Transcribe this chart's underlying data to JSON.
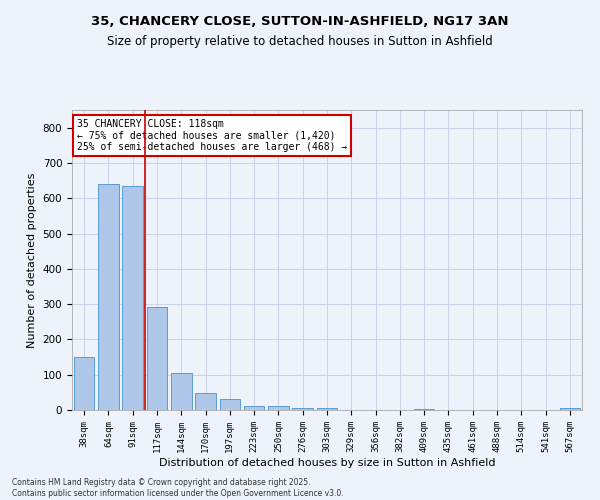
{
  "title1": "35, CHANCERY CLOSE, SUTTON-IN-ASHFIELD, NG17 3AN",
  "title2": "Size of property relative to detached houses in Sutton in Ashfield",
  "xlabel": "Distribution of detached houses by size in Sutton in Ashfield",
  "ylabel": "Number of detached properties",
  "categories": [
    "38sqm",
    "64sqm",
    "91sqm",
    "117sqm",
    "144sqm",
    "170sqm",
    "197sqm",
    "223sqm",
    "250sqm",
    "276sqm",
    "303sqm",
    "329sqm",
    "356sqm",
    "382sqm",
    "409sqm",
    "435sqm",
    "461sqm",
    "488sqm",
    "514sqm",
    "541sqm",
    "567sqm"
  ],
  "values": [
    150,
    640,
    635,
    293,
    105,
    48,
    30,
    12,
    10,
    7,
    7,
    0,
    0,
    0,
    4,
    0,
    0,
    0,
    0,
    0,
    5
  ],
  "bar_color": "#aec6e8",
  "bar_edge_color": "#5b9bd5",
  "vline_color": "#cc0000",
  "annotation_title": "35 CHANCERY CLOSE: 118sqm",
  "annotation_line1": "← 75% of detached houses are smaller (1,420)",
  "annotation_line2": "25% of semi-detached houses are larger (468) →",
  "annotation_box_color": "#cc0000",
  "ylim": [
    0,
    850
  ],
  "yticks": [
    0,
    100,
    200,
    300,
    400,
    500,
    600,
    700,
    800
  ],
  "footer": "Contains HM Land Registry data © Crown copyright and database right 2025.\nContains public sector information licensed under the Open Government Licence v3.0.",
  "bg_color": "#eef2fa",
  "grid_color": "#c8d4e8"
}
